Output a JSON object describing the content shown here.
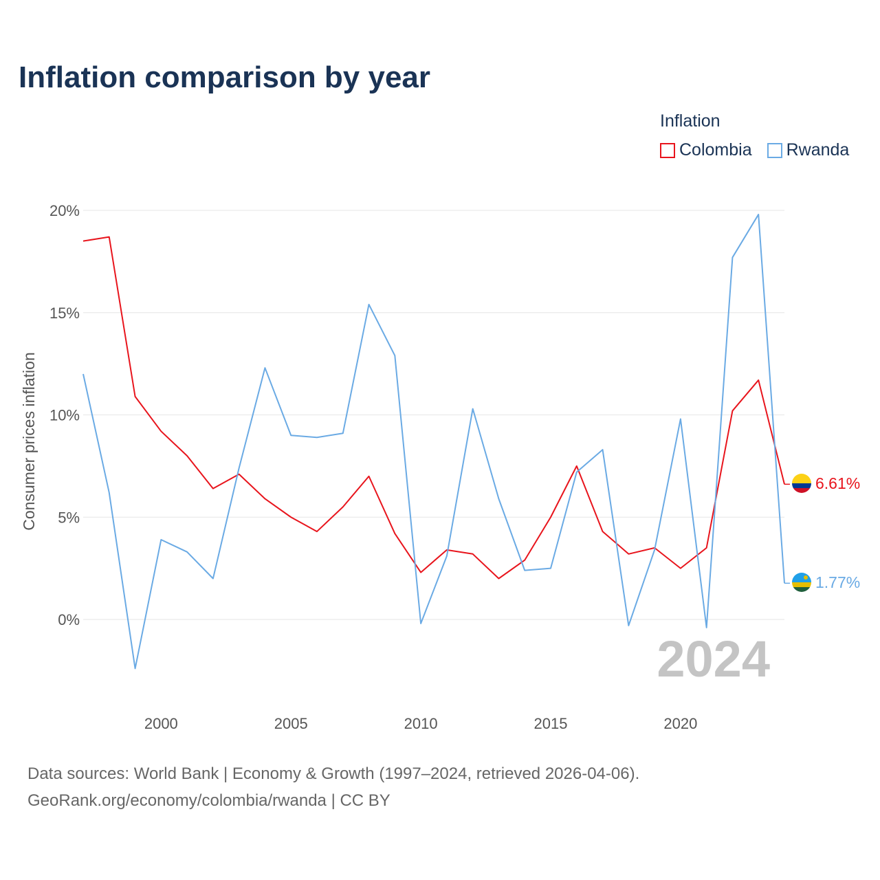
{
  "chart_data": {
    "type": "line",
    "title": "Inflation comparison by year",
    "legend_title": "Inflation",
    "ylabel": "Consumer prices inflation",
    "xlabel": "",
    "x": [
      1997,
      1998,
      1999,
      2000,
      2001,
      2002,
      2003,
      2004,
      2005,
      2006,
      2007,
      2008,
      2009,
      2010,
      2011,
      2012,
      2013,
      2014,
      2015,
      2016,
      2017,
      2018,
      2019,
      2020,
      2021,
      2022,
      2023,
      2024
    ],
    "xlim": [
      1997,
      2024
    ],
    "ylim": [
      -3.5,
      20
    ],
    "x_ticks": [
      2000,
      2005,
      2010,
      2015,
      2020
    ],
    "y_ticks": [
      0,
      5,
      10,
      15,
      20
    ],
    "y_tick_labels": [
      "0%",
      "5%",
      "10%",
      "15%",
      "20%"
    ],
    "grid": true,
    "legend_position": "top-right",
    "series": [
      {
        "name": "Colombia",
        "color": "#e8141c",
        "end_label": "6.61%",
        "values": [
          18.5,
          18.7,
          10.9,
          9.2,
          8.0,
          6.4,
          7.1,
          5.9,
          5.0,
          4.3,
          5.5,
          7.0,
          4.2,
          2.3,
          3.4,
          3.2,
          2.0,
          2.9,
          5.0,
          7.5,
          4.3,
          3.2,
          3.5,
          2.5,
          3.5,
          10.2,
          11.7,
          6.61
        ]
      },
      {
        "name": "Rwanda",
        "color": "#6aaae4",
        "end_label": "1.77%",
        "values": [
          12.0,
          6.2,
          -2.4,
          3.9,
          3.3,
          2.0,
          7.4,
          12.3,
          9.0,
          8.9,
          9.1,
          15.4,
          12.9,
          -0.2,
          3.1,
          10.3,
          5.9,
          2.4,
          2.5,
          7.2,
          8.3,
          -0.3,
          3.4,
          9.8,
          -0.4,
          17.7,
          19.8,
          1.77
        ]
      }
    ],
    "annotation": "2024"
  },
  "footer": {
    "line1": "Data sources: World Bank | Economy & Growth (1997–2024, retrieved 2026-04-06).",
    "line2": "GeoRank.org/economy/colombia/rwanda | CC BY"
  }
}
